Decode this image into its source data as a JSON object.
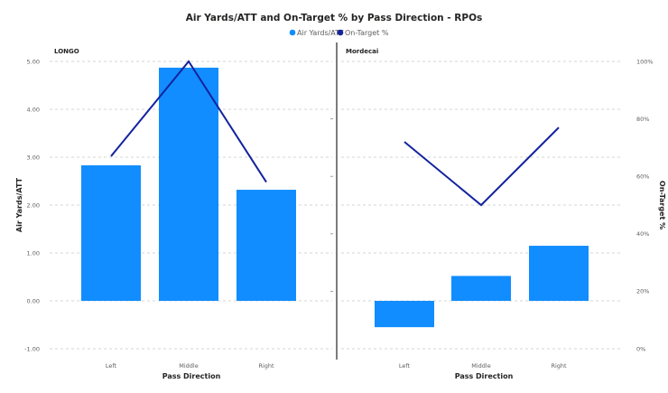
{
  "chart_data": {
    "type": "bar",
    "title": "Air Yards/ATT and On-Target % by Pass Direction - RPOs",
    "legend": {
      "placement": "top-center",
      "entries": [
        {
          "label": "Air Yards/ATT",
          "color": "#118DFF",
          "marker": "circle"
        },
        {
          "label": "On-Target %",
          "color": "#12239E",
          "marker": "circle"
        }
      ]
    },
    "xlabel": "Pass Direction",
    "ylabel": "Air Yards/ATT",
    "y2label": "On-Target %",
    "ylim": [
      -1.0,
      5.0
    ],
    "y2lim": [
      0,
      100
    ],
    "yticks": [
      "-1.00",
      "0.00",
      "1.00",
      "2.00",
      "3.00",
      "4.00",
      "5.00"
    ],
    "y2ticks": [
      "0%",
      "20%",
      "40%",
      "60%",
      "80%",
      "100%"
    ],
    "categories": [
      "Left",
      "Middle",
      "Right"
    ],
    "grid": true,
    "panels": [
      {
        "name": "LONGO",
        "series": [
          {
            "name": "Air Yards/ATT",
            "kind": "bar",
            "axis": "left",
            "values": [
              2.83,
              4.87,
              2.32
            ]
          },
          {
            "name": "On-Target %",
            "kind": "line",
            "axis": "right",
            "values": [
              67,
              100,
              58
            ]
          }
        ]
      },
      {
        "name": "Mordecai",
        "series": [
          {
            "name": "Air Yards/ATT",
            "kind": "bar",
            "axis": "left",
            "values": [
              -0.55,
              0.52,
              1.15
            ]
          },
          {
            "name": "On-Target %",
            "kind": "line",
            "axis": "right",
            "values": [
              72,
              50,
              77
            ]
          }
        ]
      }
    ]
  }
}
